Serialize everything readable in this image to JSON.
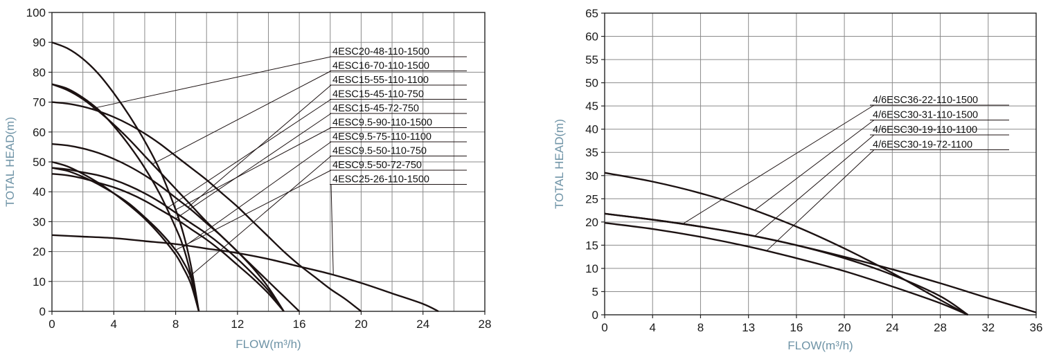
{
  "chart_data": [
    {
      "type": "line",
      "xlabel": "FLOW(m³/h)",
      "ylabel": "TOTAL HEAD(m)",
      "xlim": [
        0,
        28
      ],
      "ylim": [
        0,
        100
      ],
      "xticks": [
        0,
        4,
        8,
        12,
        16,
        20,
        24,
        28
      ],
      "yticks": [
        0,
        10,
        20,
        30,
        40,
        50,
        60,
        70,
        80,
        90,
        100
      ],
      "grid": true,
      "legend_position": "top-right",
      "series": [
        {
          "name": "4ESC20-48-110-1500",
          "x": [
            0,
            1,
            2,
            3,
            4,
            5,
            6,
            7,
            8,
            9,
            10,
            11,
            12,
            13,
            14,
            15,
            16,
            17,
            18,
            19,
            20
          ],
          "y": [
            70,
            69.5,
            68.5,
            67,
            65,
            62.5,
            59.5,
            56,
            52,
            48,
            44,
            39.5,
            35,
            30,
            25,
            20,
            15.5,
            11.5,
            7.5,
            4,
            0
          ]
        },
        {
          "name": "4ESC16-70-110-1500",
          "x": [
            0,
            1,
            2,
            3,
            4,
            5,
            6,
            7,
            8,
            9,
            10,
            11,
            12,
            13,
            14,
            15,
            16
          ],
          "y": [
            76,
            74,
            71,
            67,
            62.5,
            57.5,
            52,
            46.5,
            41,
            35.5,
            30,
            25,
            20,
            15,
            10,
            5,
            0
          ]
        },
        {
          "name": "4ESC15-55-110-1100",
          "x": [
            0,
            1,
            2,
            3,
            4,
            5,
            6,
            7,
            8,
            9,
            10,
            11,
            12,
            13,
            14,
            15
          ],
          "y": [
            56,
            55.5,
            54.5,
            53,
            51,
            48.5,
            45.5,
            42,
            38,
            34,
            29.5,
            25,
            20,
            14.5,
            8,
            0
          ]
        },
        {
          "name": "4ESC15-45-110-750",
          "x": [
            0,
            1,
            2,
            3,
            4,
            5,
            6,
            7,
            8,
            9,
            10,
            11,
            12,
            13,
            14,
            15
          ],
          "y": [
            48,
            47.5,
            46.5,
            45.5,
            44,
            42,
            39.5,
            36.5,
            33,
            29.5,
            26,
            22,
            17.5,
            12.5,
            7,
            0
          ]
        },
        {
          "name": "4ESC15-45-72-750",
          "x": [
            0,
            1,
            2,
            3,
            4,
            5,
            6,
            7,
            8,
            9,
            10,
            11,
            12,
            13,
            14,
            15
          ],
          "y": [
            46,
            45.5,
            44.5,
            43,
            41.5,
            39.5,
            37,
            34,
            31,
            27.5,
            24,
            20,
            15.5,
            11,
            6,
            0
          ]
        },
        {
          "name": "4ESC9.5-90-110-1500",
          "x": [
            0,
            1,
            2,
            3,
            4,
            5,
            6,
            7,
            8,
            8.5,
            9,
            9.5
          ],
          "y": [
            90,
            88,
            84.5,
            79.5,
            73,
            65.5,
            57,
            47,
            34,
            26,
            15,
            0
          ]
        },
        {
          "name": "4ESC9.5-75-110-1100",
          "x": [
            0,
            1,
            2,
            3,
            4,
            5,
            6,
            7,
            8,
            8.5,
            9,
            9.5
          ],
          "y": [
            76,
            74.5,
            71.5,
            67.5,
            62,
            55.5,
            48,
            39,
            28,
            21.5,
            12,
            0
          ]
        },
        {
          "name": "4ESC9.5-50-110-750",
          "x": [
            0,
            1,
            2,
            3,
            4,
            5,
            6,
            7,
            8,
            8.5,
            9,
            9.5
          ],
          "y": [
            50,
            48.5,
            46,
            43,
            39.5,
            35.5,
            31,
            25.5,
            19,
            14.5,
            9,
            0
          ]
        },
        {
          "name": "4ESC9.5-50-72-750",
          "x": [
            0,
            1,
            2,
            3,
            4,
            5,
            6,
            7,
            8,
            8.5,
            9,
            9.5
          ],
          "y": [
            48,
            47,
            45,
            42.5,
            39.5,
            36,
            31.5,
            26.5,
            20.5,
            16.5,
            11,
            0
          ]
        },
        {
          "name": "4ESC25-26-110-1500",
          "x": [
            0,
            2,
            4,
            6,
            8,
            10,
            12,
            14,
            16,
            18,
            20,
            22,
            24,
            25
          ],
          "y": [
            25.5,
            25,
            24.5,
            23.5,
            22.5,
            21,
            19.5,
            17.5,
            15,
            12.5,
            9.5,
            6,
            2.5,
            0
          ]
        }
      ]
    },
    {
      "type": "line",
      "xlabel": "FLOW(m³/h)",
      "ylabel": "TOTAL HEAD(m)",
      "xlim": [
        0,
        36
      ],
      "ylim": [
        0,
        65
      ],
      "xticks": [
        0,
        4,
        8,
        13,
        16,
        20,
        24,
        28,
        32,
        36
      ],
      "yticks": [
        0,
        5,
        10,
        15,
        20,
        25,
        30,
        35,
        40,
        45,
        50,
        55,
        60,
        65
      ],
      "grid": true,
      "legend_position": "center-right",
      "series": [
        {
          "name": "4/6ESC36-22-110-1500",
          "x": [
            0,
            4,
            8,
            12,
            16,
            20,
            24,
            28,
            32,
            36
          ],
          "y": [
            21.8,
            20.5,
            19,
            17.2,
            15,
            12.5,
            9.8,
            6.8,
            3.6,
            0.5
          ]
        },
        {
          "name": "4/6ESC30-31-110-1500",
          "x": [
            0,
            4,
            8,
            12,
            16,
            20,
            24,
            28,
            30.3
          ],
          "y": [
            30.6,
            28.7,
            26.2,
            23,
            19,
            14.3,
            9,
            3.2,
            0
          ]
        },
        {
          "name": "4/6ESC30-19-110-1100",
          "x": [
            0,
            4,
            8,
            12,
            16,
            20,
            24,
            28,
            30.3
          ],
          "y": [
            21.8,
            20.5,
            19,
            17.2,
            15,
            12.2,
            8.6,
            4,
            0
          ]
        },
        {
          "name": "4/6ESC30-19-72-1100",
          "x": [
            0,
            4,
            8,
            12,
            16,
            20,
            24,
            28,
            30.3
          ],
          "y": [
            19.8,
            18.5,
            16.8,
            14.7,
            12.2,
            9.4,
            6.1,
            2.5,
            0
          ]
        }
      ]
    }
  ]
}
